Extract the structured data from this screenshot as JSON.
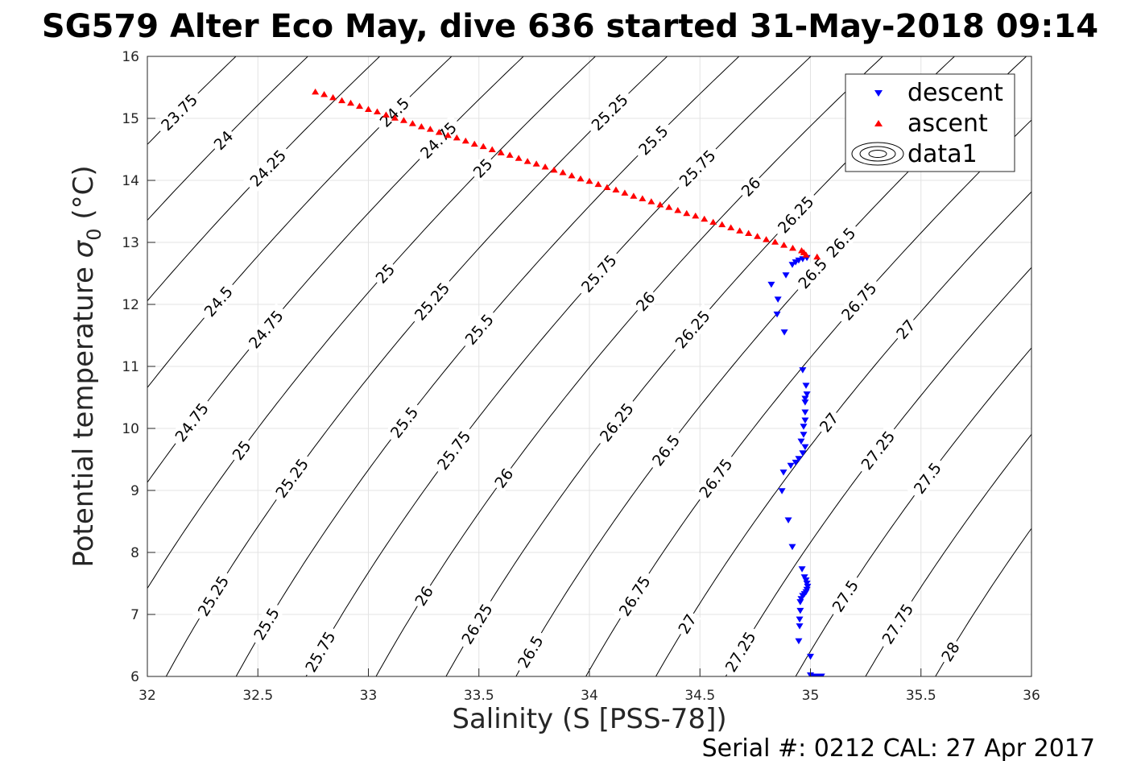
{
  "chart_data": {
    "type": "scatter",
    "title": "SG579 Alter Eco May, dive 636 started 31-May-2018 09:14",
    "xlabel": "Salinity (S [PSS-78])",
    "ylabel": {
      "prefix": "Potential temperature ",
      "symbol": "σ",
      "subscript": "0",
      "suffix": " (°C)"
    },
    "xlim": [
      32,
      36
    ],
    "ylim": [
      6,
      16
    ],
    "x_ticks": [
      "32",
      "32.5",
      "33",
      "33.5",
      "34",
      "34.5",
      "35",
      "35.5",
      "36"
    ],
    "y_ticks": [
      "6",
      "7",
      "8",
      "9",
      "10",
      "11",
      "12",
      "13",
      "14",
      "15",
      "16"
    ],
    "grid": true,
    "legend": {
      "placement": "top-right",
      "entries": [
        "descent",
        "ascent",
        "data1"
      ]
    },
    "contour_levels": [
      "23.75",
      "24",
      "24.25",
      "24.5",
      "24.75",
      "25",
      "25.25",
      "25.5",
      "25.75",
      "26",
      "26.25",
      "26.5",
      "26.75",
      "27",
      "27.25",
      "27.5",
      "27.75",
      "28"
    ],
    "series": [
      {
        "name": "descent",
        "marker": "down-triangle",
        "color": "#0000ff",
        "points": [
          [
            34.984,
            12.75
          ],
          [
            34.965,
            12.73
          ],
          [
            34.947,
            12.71
          ],
          [
            34.933,
            12.68
          ],
          [
            34.918,
            12.64
          ],
          [
            34.889,
            12.47
          ],
          [
            34.823,
            12.32
          ],
          [
            34.853,
            12.08
          ],
          [
            34.849,
            11.84
          ],
          [
            34.882,
            11.55
          ],
          [
            34.965,
            10.94
          ],
          [
            34.98,
            10.69
          ],
          [
            34.984,
            10.55
          ],
          [
            34.976,
            10.48
          ],
          [
            34.976,
            10.42
          ],
          [
            34.976,
            10.26
          ],
          [
            34.976,
            10.13
          ],
          [
            34.969,
            10.03
          ],
          [
            34.969,
            9.9
          ],
          [
            34.958,
            9.79
          ],
          [
            34.976,
            9.7
          ],
          [
            34.965,
            9.6
          ],
          [
            34.947,
            9.51
          ],
          [
            34.933,
            9.45
          ],
          [
            34.911,
            9.4
          ],
          [
            34.878,
            9.29
          ],
          [
            34.871,
            8.99
          ],
          [
            34.9,
            8.52
          ],
          [
            34.918,
            8.09
          ],
          [
            34.962,
            7.73
          ],
          [
            34.973,
            7.6
          ],
          [
            34.98,
            7.55
          ],
          [
            34.984,
            7.5
          ],
          [
            34.987,
            7.45
          ],
          [
            34.984,
            7.4
          ],
          [
            34.98,
            7.36
          ],
          [
            34.973,
            7.33
          ],
          [
            34.965,
            7.3
          ],
          [
            34.958,
            7.25
          ],
          [
            34.954,
            7.2
          ],
          [
            34.954,
            7.06
          ],
          [
            34.951,
            6.92
          ],
          [
            34.951,
            6.81
          ],
          [
            34.947,
            6.57
          ],
          [
            35.0,
            6.32
          ],
          [
            35.0,
            6.02
          ],
          [
            35.01,
            6.0
          ],
          [
            35.02,
            6.0
          ],
          [
            35.03,
            6.0
          ],
          [
            35.04,
            6.0
          ],
          [
            35.05,
            6.0
          ]
        ]
      },
      {
        "name": "ascent",
        "marker": "up-triangle",
        "color": "#ff0000",
        "points": [
          [
            32.76,
            15.43
          ],
          [
            32.8,
            15.39
          ],
          [
            32.84,
            15.34
          ],
          [
            32.88,
            15.29
          ],
          [
            32.92,
            15.25
          ],
          [
            32.96,
            15.2
          ],
          [
            33.0,
            15.15
          ],
          [
            33.04,
            15.11
          ],
          [
            33.08,
            15.06
          ],
          [
            33.12,
            15.01
          ],
          [
            33.16,
            14.97
          ],
          [
            33.2,
            14.92
          ],
          [
            33.24,
            14.87
          ],
          [
            33.28,
            14.83
          ],
          [
            33.32,
            14.78
          ],
          [
            33.36,
            14.73
          ],
          [
            33.4,
            14.69
          ],
          [
            33.44,
            14.64
          ],
          [
            33.48,
            14.59
          ],
          [
            33.52,
            14.55
          ],
          [
            33.56,
            14.5
          ],
          [
            33.6,
            14.45
          ],
          [
            33.64,
            14.41
          ],
          [
            33.68,
            14.36
          ],
          [
            33.72,
            14.31
          ],
          [
            33.76,
            14.27
          ],
          [
            33.8,
            14.22
          ],
          [
            33.84,
            14.17
          ],
          [
            33.88,
            14.13
          ],
          [
            33.92,
            14.08
          ],
          [
            33.96,
            14.03
          ],
          [
            34.0,
            13.99
          ],
          [
            34.04,
            13.94
          ],
          [
            34.08,
            13.89
          ],
          [
            34.12,
            13.85
          ],
          [
            34.16,
            13.8
          ],
          [
            34.2,
            13.75
          ],
          [
            34.24,
            13.71
          ],
          [
            34.28,
            13.66
          ],
          [
            34.32,
            13.61
          ],
          [
            34.36,
            13.57
          ],
          [
            34.4,
            13.52
          ],
          [
            34.44,
            13.47
          ],
          [
            34.48,
            13.43
          ],
          [
            34.52,
            13.38
          ],
          [
            34.56,
            13.33
          ],
          [
            34.6,
            13.29
          ],
          [
            34.64,
            13.24
          ],
          [
            34.68,
            13.19
          ],
          [
            34.72,
            13.15
          ],
          [
            34.76,
            13.1
          ],
          [
            34.8,
            13.05
          ],
          [
            34.84,
            13.01
          ],
          [
            34.88,
            12.96
          ],
          [
            34.92,
            12.91
          ],
          [
            34.96,
            12.87
          ],
          [
            34.97,
            12.84
          ],
          [
            34.98,
            12.8
          ],
          [
            35.03,
            12.77
          ]
        ]
      }
    ]
  },
  "footer": "Serial #: 0212  CAL: 27 Apr 2017"
}
